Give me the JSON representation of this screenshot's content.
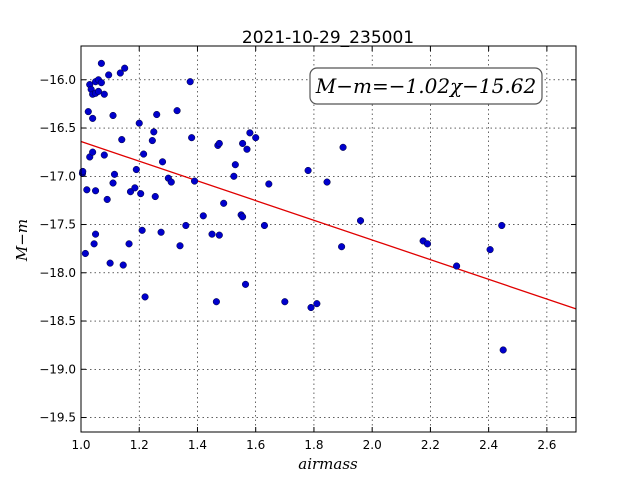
{
  "chart_data": {
    "type": "scatter",
    "title": "2021-10-29_235001",
    "xlabel": "airmass",
    "ylabel": "M−m",
    "xlim": [
      1.0,
      2.7
    ],
    "ylim": [
      -15.65,
      -19.65
    ],
    "y_inverted": true,
    "grid": true,
    "x_ticks": [
      1.0,
      1.2,
      1.4,
      1.6,
      1.8,
      2.0,
      2.2,
      2.4,
      2.6
    ],
    "x_tick_labels": [
      "1.0",
      "1.2",
      "1.4",
      "1.6",
      "1.8",
      "2.0",
      "2.2",
      "2.4",
      "2.6"
    ],
    "y_ticks": [
      -16.0,
      -16.5,
      -17.0,
      -17.5,
      -18.0,
      -18.5,
      -19.0,
      -19.5
    ],
    "y_tick_labels": [
      "−16.0",
      "−16.5",
      "−17.0",
      "−17.5",
      "−18.0",
      "−18.5",
      "−19.0",
      "−19.5"
    ],
    "annotation": "M−m=−1.02χ−15.62",
    "fit": {
      "slope": -1.02,
      "intercept": -15.62,
      "color": "#e00000"
    },
    "point_color": "#0000cc",
    "points": [
      [
        1.005,
        -16.97
      ],
      [
        1.006,
        -16.95
      ],
      [
        1.015,
        -17.8
      ],
      [
        1.02,
        -17.14
      ],
      [
        1.025,
        -16.33
      ],
      [
        1.03,
        -16.05
      ],
      [
        1.03,
        -16.8
      ],
      [
        1.035,
        -16.1
      ],
      [
        1.04,
        -16.75
      ],
      [
        1.04,
        -16.4
      ],
      [
        1.04,
        -16.15
      ],
      [
        1.045,
        -17.7
      ],
      [
        1.05,
        -16.02
      ],
      [
        1.05,
        -16.14
      ],
      [
        1.05,
        -17.15
      ],
      [
        1.05,
        -17.6
      ],
      [
        1.06,
        -16.0
      ],
      [
        1.06,
        -16.12
      ],
      [
        1.07,
        -16.03
      ],
      [
        1.07,
        -15.83
      ],
      [
        1.08,
        -16.15
      ],
      [
        1.08,
        -16.78
      ],
      [
        1.09,
        -17.24
      ],
      [
        1.095,
        -15.95
      ],
      [
        1.1,
        -17.9
      ],
      [
        1.11,
        -16.37
      ],
      [
        1.11,
        -17.07
      ],
      [
        1.115,
        -16.98
      ],
      [
        1.135,
        -15.93
      ],
      [
        1.14,
        -16.62
      ],
      [
        1.145,
        -17.92
      ],
      [
        1.15,
        -15.88
      ],
      [
        1.165,
        -17.7
      ],
      [
        1.17,
        -17.16
      ],
      [
        1.185,
        -17.12
      ],
      [
        1.19,
        -16.93
      ],
      [
        1.2,
        -16.45
      ],
      [
        1.205,
        -17.18
      ],
      [
        1.21,
        -17.56
      ],
      [
        1.215,
        -16.77
      ],
      [
        1.22,
        -18.25
      ],
      [
        1.245,
        -16.63
      ],
      [
        1.25,
        -16.54
      ],
      [
        1.255,
        -17.21
      ],
      [
        1.26,
        -16.36
      ],
      [
        1.275,
        -17.58
      ],
      [
        1.28,
        -16.85
      ],
      [
        1.3,
        -17.02
      ],
      [
        1.31,
        -17.06
      ],
      [
        1.33,
        -16.32
      ],
      [
        1.34,
        -17.72
      ],
      [
        1.36,
        -17.51
      ],
      [
        1.375,
        -16.02
      ],
      [
        1.38,
        -16.6
      ],
      [
        1.39,
        -17.05
      ],
      [
        1.42,
        -17.41
      ],
      [
        1.45,
        -17.6
      ],
      [
        1.465,
        -18.3
      ],
      [
        1.47,
        -16.68
      ],
      [
        1.475,
        -16.66
      ],
      [
        1.475,
        -17.61
      ],
      [
        1.49,
        -17.28
      ],
      [
        1.525,
        -17.0
      ],
      [
        1.53,
        -16.88
      ],
      [
        1.55,
        -17.4
      ],
      [
        1.555,
        -17.42
      ],
      [
        1.555,
        -16.66
      ],
      [
        1.565,
        -18.12
      ],
      [
        1.57,
        -16.72
      ],
      [
        1.58,
        -16.55
      ],
      [
        1.6,
        -16.6
      ],
      [
        1.63,
        -17.51
      ],
      [
        1.645,
        -17.08
      ],
      [
        1.7,
        -18.3
      ],
      [
        1.78,
        -16.94
      ],
      [
        1.79,
        -18.36
      ],
      [
        1.81,
        -18.32
      ],
      [
        1.845,
        -17.06
      ],
      [
        1.895,
        -17.73
      ],
      [
        1.9,
        -16.7
      ],
      [
        1.96,
        -17.46
      ],
      [
        2.175,
        -17.67
      ],
      [
        2.19,
        -17.7
      ],
      [
        2.29,
        -17.93
      ],
      [
        2.405,
        -17.76
      ],
      [
        2.445,
        -17.51
      ],
      [
        2.45,
        -18.8
      ]
    ]
  }
}
